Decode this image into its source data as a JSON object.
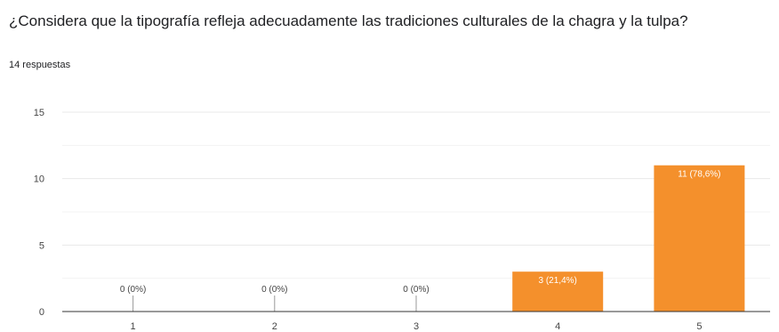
{
  "question": " ¿Considera que la tipografía refleja adecuadamente las tradiciones culturales de la chagra y la tulpa?",
  "responses_label": "14 respuestas",
  "colors": {
    "bar": "#f4902c",
    "grid": "#e8e8e8",
    "axis": "#333333"
  },
  "chart_data": {
    "type": "bar",
    "categories": [
      "1",
      "2",
      "3",
      "4",
      "5"
    ],
    "values": [
      0,
      0,
      0,
      3,
      11
    ],
    "data_labels": [
      "0 (0%)",
      "0 (0%)",
      "0 (0%)",
      "3 (21,4%)",
      "11 (78,6%)"
    ],
    "yticks": [
      0,
      5,
      10,
      15
    ],
    "ylim": [
      0,
      15
    ],
    "title": " ¿Considera que la tipografía refleja adecuadamente las tradiciones culturales de la chagra y la tulpa?",
    "xlabel": "",
    "ylabel": "",
    "grid": true
  }
}
